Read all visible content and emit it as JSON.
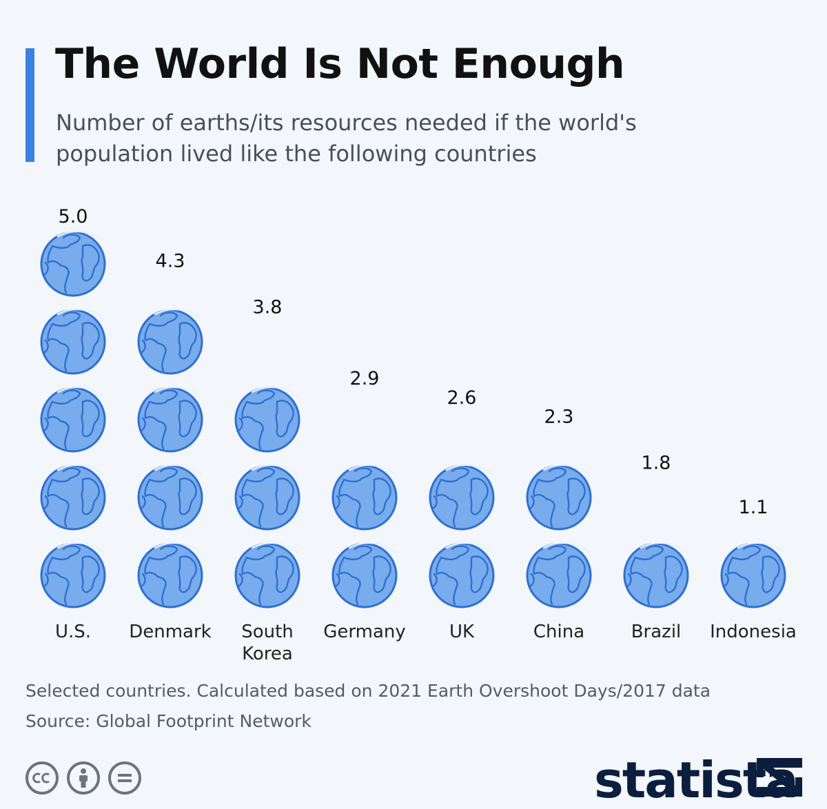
{
  "title": "The World Is Not Enough",
  "subtitle": "Number of earths/its resources needed if the world's population lived like the following countries",
  "chart_data": {
    "type": "bar",
    "title": "The World Is Not Enough",
    "subtitle": "Number of earths/its resources needed if the world's population lived like the following countries",
    "categories": [
      "U.S.",
      "Denmark",
      "South Korea",
      "Germany",
      "UK",
      "China",
      "Brazil",
      "Indonesia"
    ],
    "category_labels": [
      [
        "U.S."
      ],
      [
        "Denmark"
      ],
      [
        "South",
        "Korea"
      ],
      [
        "Germany"
      ],
      [
        "UK"
      ],
      [
        "China"
      ],
      [
        "Brazil"
      ],
      [
        "Indonesia"
      ]
    ],
    "values": [
      5.0,
      4.3,
      3.8,
      2.9,
      2.6,
      2.3,
      1.8,
      1.1
    ],
    "value_labels": [
      "5.0",
      "4.3",
      "3.8",
      "2.9",
      "2.6",
      "2.3",
      "1.8",
      "1.1"
    ],
    "unit": "earths",
    "mark": "globe-pictogram",
    "xlabel": "",
    "ylabel": "",
    "ylim": [
      0,
      5
    ]
  },
  "footnote": "Selected countries. Calculated based on 2021 Earth Overshoot Days/2017 data",
  "source": "Source: Global Footprint Network",
  "brand": "statista",
  "icons": [
    "cc-icon",
    "attribution-icon",
    "no-derivatives-icon"
  ],
  "colors": {
    "accent": "#3b82e0",
    "globe_fill": "#78acec",
    "globe_line": "#2f6fd0",
    "text": "#111111"
  }
}
